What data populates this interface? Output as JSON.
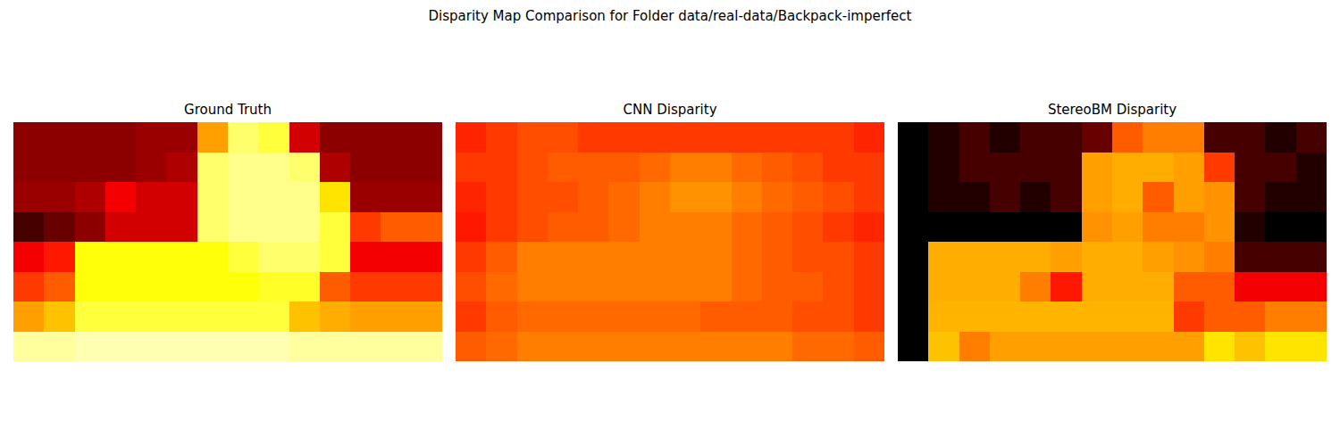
{
  "title": "Disparity Map Comparison for Folder data/real-data/Backpack-imperfect",
  "chart_data": [
    {
      "type": "heatmap",
      "title": "Ground Truth",
      "color": "hot",
      "zlim": [
        0,
        1
      ],
      "tick_labels": false,
      "cells": [
        [
          0.2,
          0.2,
          0.2,
          0.2,
          0.22,
          0.22,
          0.6,
          0.85,
          0.8,
          0.3,
          0.2,
          0.2,
          0.2,
          0.2
        ],
        [
          0.2,
          0.2,
          0.2,
          0.2,
          0.22,
          0.25,
          0.85,
          0.88,
          0.88,
          0.85,
          0.25,
          0.2,
          0.2,
          0.2
        ],
        [
          0.22,
          0.22,
          0.25,
          0.35,
          0.3,
          0.3,
          0.85,
          0.88,
          0.88,
          0.88,
          0.7,
          0.22,
          0.22,
          0.22
        ],
        [
          0.1,
          0.15,
          0.2,
          0.3,
          0.3,
          0.3,
          0.85,
          0.88,
          0.88,
          0.88,
          0.8,
          0.45,
          0.5,
          0.5
        ],
        [
          0.35,
          0.4,
          0.75,
          0.75,
          0.75,
          0.75,
          0.75,
          0.8,
          0.85,
          0.85,
          0.8,
          0.35,
          0.35,
          0.35
        ],
        [
          0.45,
          0.5,
          0.75,
          0.75,
          0.75,
          0.75,
          0.75,
          0.75,
          0.78,
          0.78,
          0.5,
          0.45,
          0.45,
          0.45
        ],
        [
          0.6,
          0.65,
          0.8,
          0.8,
          0.8,
          0.8,
          0.8,
          0.8,
          0.8,
          0.65,
          0.62,
          0.6,
          0.6,
          0.6
        ],
        [
          0.9,
          0.9,
          0.92,
          0.92,
          0.92,
          0.92,
          0.92,
          0.92,
          0.92,
          0.9,
          0.9,
          0.9,
          0.9,
          0.9
        ]
      ]
    },
    {
      "type": "heatmap",
      "title": "CNN Disparity",
      "color": "hot",
      "zlim": [
        0,
        1
      ],
      "tick_labels": false,
      "cells": [
        [
          0.42,
          0.45,
          0.48,
          0.48,
          0.45,
          0.45,
          0.45,
          0.45,
          0.45,
          0.45,
          0.45,
          0.45,
          0.45,
          0.42
        ],
        [
          0.45,
          0.45,
          0.48,
          0.5,
          0.5,
          0.5,
          0.52,
          0.55,
          0.55,
          0.52,
          0.5,
          0.48,
          0.45,
          0.45
        ],
        [
          0.42,
          0.45,
          0.48,
          0.48,
          0.5,
          0.52,
          0.55,
          0.58,
          0.58,
          0.55,
          0.52,
          0.5,
          0.48,
          0.45
        ],
        [
          0.4,
          0.45,
          0.48,
          0.5,
          0.5,
          0.52,
          0.55,
          0.55,
          0.55,
          0.52,
          0.5,
          0.48,
          0.45,
          0.42
        ],
        [
          0.45,
          0.5,
          0.55,
          0.55,
          0.55,
          0.55,
          0.55,
          0.55,
          0.55,
          0.52,
          0.5,
          0.48,
          0.48,
          0.45
        ],
        [
          0.48,
          0.52,
          0.55,
          0.55,
          0.55,
          0.55,
          0.55,
          0.55,
          0.55,
          0.52,
          0.5,
          0.5,
          0.48,
          0.45
        ],
        [
          0.45,
          0.5,
          0.52,
          0.52,
          0.52,
          0.52,
          0.52,
          0.52,
          0.5,
          0.5,
          0.5,
          0.48,
          0.48,
          0.45
        ],
        [
          0.5,
          0.52,
          0.55,
          0.55,
          0.55,
          0.55,
          0.55,
          0.55,
          0.55,
          0.55,
          0.55,
          0.52,
          0.52,
          0.5
        ]
      ]
    },
    {
      "type": "heatmap",
      "title": "StereoBM Disparity",
      "color": "hot",
      "zlim": [
        0,
        1
      ],
      "tick_labels": false,
      "cells": [
        [
          0,
          0.05,
          0.1,
          0.05,
          0.1,
          0.1,
          0.15,
          0.5,
          0.55,
          0.55,
          0.1,
          0.1,
          0.05,
          0.1
        ],
        [
          0,
          0.05,
          0.1,
          0.1,
          0.1,
          0.1,
          0.6,
          0.62,
          0.62,
          0.6,
          0.45,
          0.1,
          0.1,
          0.05
        ],
        [
          0,
          0.05,
          0.05,
          0.1,
          0.05,
          0.1,
          0.6,
          0.62,
          0.5,
          0.6,
          0.58,
          0.1,
          0.05,
          0.05
        ],
        [
          0,
          0,
          0,
          0,
          0,
          0,
          0.58,
          0.6,
          0.55,
          0.55,
          0.58,
          0.05,
          0,
          0
        ],
        [
          0,
          0.62,
          0.62,
          0.62,
          0.62,
          0.6,
          0.62,
          0.62,
          0.6,
          0.58,
          0.55,
          0.1,
          0.1,
          0.1
        ],
        [
          0,
          0.62,
          0.62,
          0.62,
          0.55,
          0.4,
          0.62,
          0.62,
          0.62,
          0.5,
          0.5,
          0.35,
          0.35,
          0.35
        ],
        [
          0,
          0.63,
          0.63,
          0.63,
          0.63,
          0.63,
          0.63,
          0.63,
          0.63,
          0.45,
          0.5,
          0.5,
          0.55,
          0.55
        ],
        [
          0,
          0.65,
          0.55,
          0.6,
          0.6,
          0.6,
          0.6,
          0.6,
          0.6,
          0.6,
          0.7,
          0.65,
          0.7,
          0.7
        ]
      ]
    }
  ]
}
